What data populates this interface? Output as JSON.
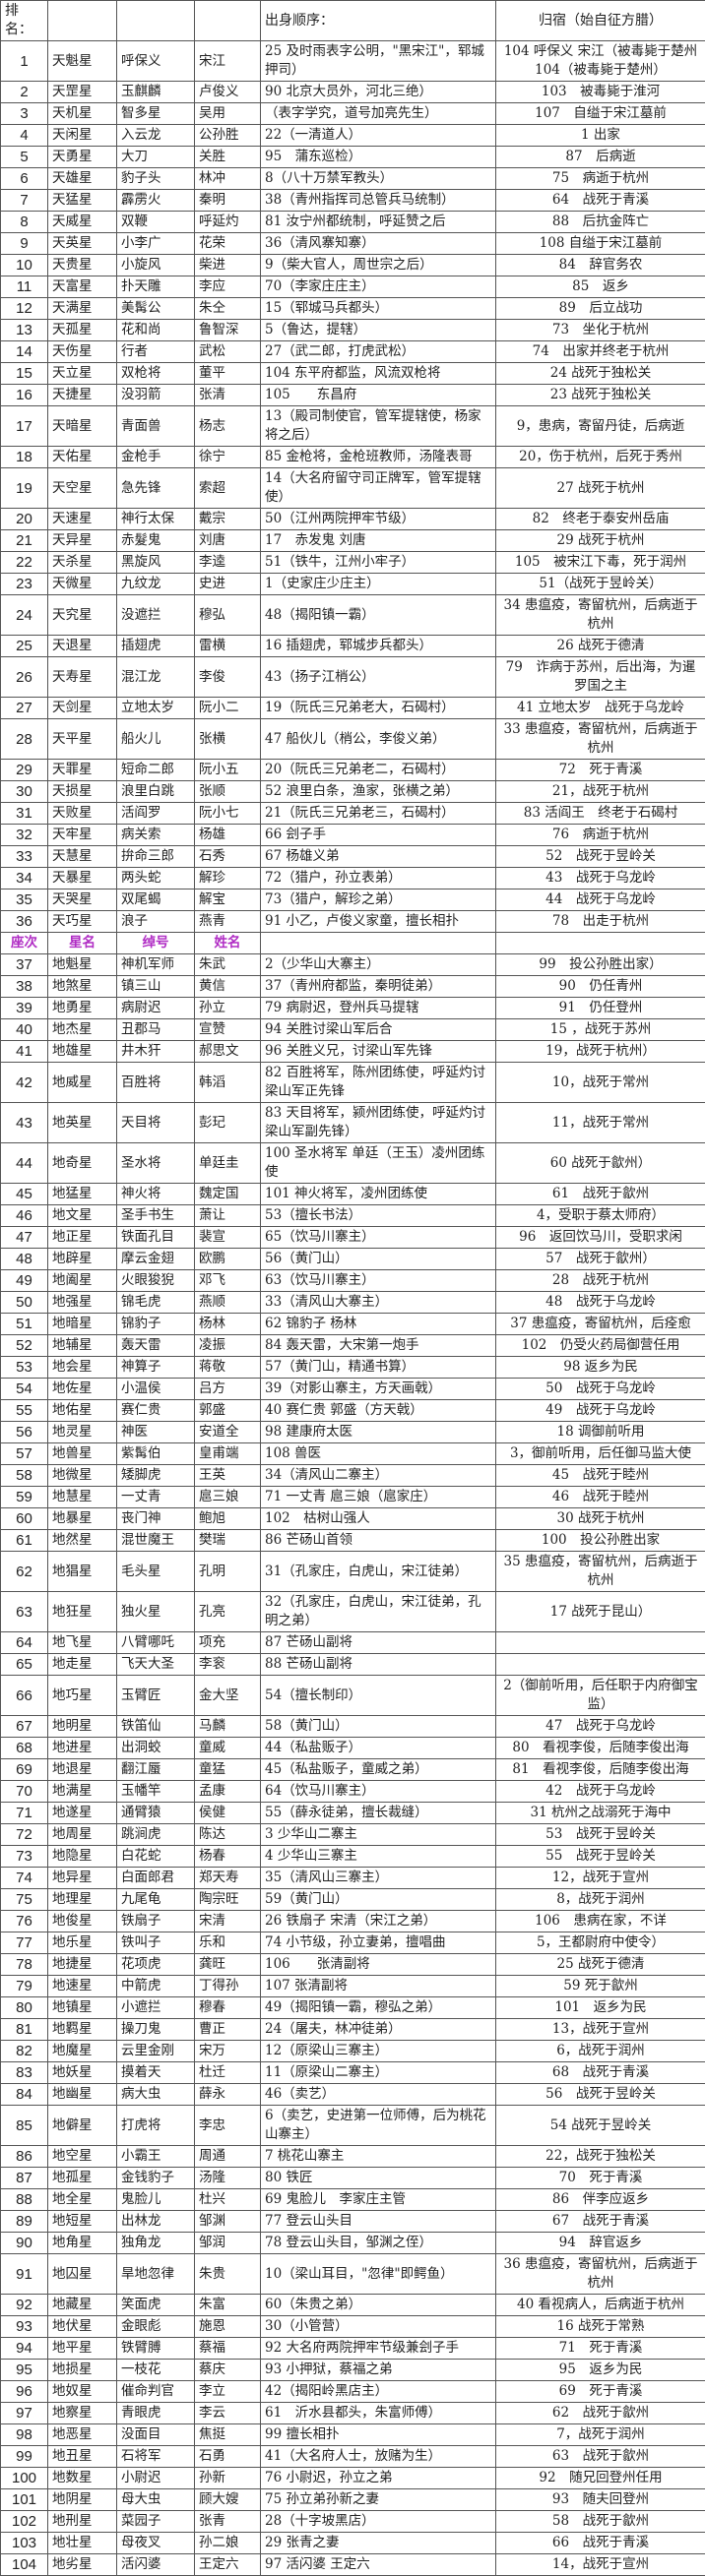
{
  "header": {
    "rank": "排名：",
    "origin": "出身顺序：",
    "fate": "归宿（始自征方腊）"
  },
  "subheader": {
    "rank": "座次",
    "star": "星名",
    "nickname": "绰号",
    "name": "姓名",
    "color": "#b02cc4"
  },
  "rows_tiangang": [
    [
      "1",
      "天魁星",
      "呼保义",
      "宋江",
      "25 及时雨表字公明，\"黑宋江\"，郓城押司）",
      "104 呼保义 宋江（被毒毙于楚州 104（被毒毙于楚州）"
    ],
    [
      "2",
      "天罡星",
      "玉麒麟",
      "卢俊义",
      "90 北京大员外，河北三绝）",
      "103　被毒毙于淮河"
    ],
    [
      "3",
      "天机星",
      "智多星",
      "吴用",
      "（表字学究，道号加亮先生）",
      "107　自缢于宋江墓前"
    ],
    [
      "4",
      "天闲星",
      "入云龙",
      "公孙胜",
      "22（一清道人）",
      "1 出家"
    ],
    [
      "5",
      "天勇星",
      "大刀",
      "关胜",
      "95　蒲东巡检）",
      "87　后病逝"
    ],
    [
      "6",
      "天雄星",
      "豹子头",
      "林冲",
      "8（八十万禁军教头）",
      "75　病逝于杭州"
    ],
    [
      "7",
      "天猛星",
      "霹雳火",
      "秦明",
      "38（青州指挥司总管兵马统制）",
      "64　战死于青溪"
    ],
    [
      "8",
      "天威星",
      "双鞭",
      "呼延灼",
      "81 汝宁州都统制，呼延赞之后",
      "88　后抗金阵亡"
    ],
    [
      "9",
      "天英星",
      "小李广",
      "花荣",
      "36（清风寨知寨）",
      "108 自缢于宋江墓前"
    ],
    [
      "10",
      "天贵星",
      "小旋风",
      "柴进",
      "9（柴大官人，周世宗之后）",
      "84　辞官务农"
    ],
    [
      "11",
      "天富星",
      "扑天雕",
      "李应",
      "70（李家庄庄主）",
      "85　返乡"
    ],
    [
      "12",
      "天满星",
      "美髯公",
      "朱仝",
      "15（郓城马兵都头）",
      "89　后立战功"
    ],
    [
      "13",
      "天孤星",
      "花和尚",
      "鲁智深",
      "5（鲁达，提辖）",
      "73　坐化于杭州"
    ],
    [
      "14",
      "天伤星",
      "行者",
      "武松",
      "27（武二郎，打虎武松）",
      "74　出家并终老于杭州"
    ],
    [
      "15",
      "天立星",
      "双枪将",
      "董平",
      "104 东平府都监，风流双枪将",
      "24 战死于独松关"
    ],
    [
      "16",
      "天捷星",
      "没羽箭",
      "张清",
      "105　　东昌府",
      "23 战死于独松关"
    ],
    [
      "17",
      "天暗星",
      "青面兽",
      "杨志",
      "13（殿司制使官，管军提辖使，杨家将之后）",
      "9，患病，寄留丹徒，后病逝"
    ],
    [
      "18",
      "天佑星",
      "金枪手",
      "徐宁",
      "85 金枪将，金枪班教师，汤隆表哥",
      "20，伤于杭州，后死于秀州"
    ],
    [
      "19",
      "天空星",
      "急先锋",
      "索超",
      "14（大名府留守司正牌军，管军提辖使）",
      "27 战死于杭州"
    ],
    [
      "20",
      "天速星",
      "神行太保",
      "戴宗",
      "50（江州两院押牢节级）",
      "82　终老于泰安州岳庙"
    ],
    [
      "21",
      "天异星",
      "赤髮鬼",
      "刘唐",
      "17　赤发鬼 刘唐",
      "29 战死于杭州"
    ],
    [
      "22",
      "天杀星",
      "黑旋风",
      "李逵",
      "51（铁牛，江州小牢子）",
      "105　被宋江下毒，死于润州"
    ],
    [
      "23",
      "天微星",
      "九纹龙",
      "史进",
      "1（史家庄少庄主）",
      "51（战死于昱岭关）"
    ],
    [
      "24",
      "天究星",
      "没遮拦",
      "穆弘",
      "48（揭阳镇一霸）",
      "34 患瘟疫，寄留杭州，后病逝于杭州"
    ],
    [
      "25",
      "天退星",
      "插翅虎",
      "雷横",
      "16 插翅虎，郓城步兵都头）",
      "26 战死于德清"
    ],
    [
      "26",
      "天寿星",
      "混江龙",
      "李俊",
      "43（扬子江梢公）",
      "79　诈病于苏州，后出海，为暹罗国之主"
    ],
    [
      "27",
      "天剑星",
      "立地太岁",
      "阮小二",
      "19（阮氏三兄弟老大，石碣村）",
      "41 立地太岁　战死于乌龙岭"
    ],
    [
      "28",
      "天平星",
      "船火儿",
      "张横",
      "47 船伙儿（梢公，李俊义弟）",
      "33 患瘟疫，寄留杭州，后病逝于杭州"
    ],
    [
      "29",
      "天罪星",
      "短命二郎",
      "阮小五",
      "20（阮氏三兄弟老二，石碣村）",
      "72　死于青溪"
    ],
    [
      "30",
      "天损星",
      "浪里白跳",
      "张顺",
      "52 浪里白条，渔家，张横之弟）",
      "21，战死于杭州"
    ],
    [
      "31",
      "天败星",
      "活阎罗",
      "阮小七",
      "21（阮氏三兄弟老三，石碣村）",
      "83 活阎王　终老于石碣村"
    ],
    [
      "32",
      "天牢星",
      "病关索",
      "杨雄",
      "66 刽子手",
      "76　病逝于杭州"
    ],
    [
      "33",
      "天慧星",
      "拚命三郎",
      "石秀",
      "67 杨雄义弟",
      "52　战死于昱岭关"
    ],
    [
      "34",
      "天暴星",
      "两头蛇",
      "解珍",
      "72（猎户，孙立表弟）",
      "43　战死于乌龙岭"
    ],
    [
      "35",
      "天哭星",
      "双尾蝎",
      "解宝",
      "73（猎户，解珍之弟）",
      "44　战死于乌龙岭"
    ],
    [
      "36",
      "天巧星",
      "浪子",
      "燕青",
      "91 小乙，卢俊义家童，擅长相扑",
      "78　出走于杭州"
    ]
  ],
  "rows_disha": [
    [
      "37",
      "地魁星",
      "神机军师",
      "朱武",
      "2（少华山大寨主）",
      "99　投公孙胜出家）"
    ],
    [
      "38",
      "地煞星",
      "镇三山",
      "黄信",
      "37（青州府都监，秦明徒弟）",
      "90　仍任青州"
    ],
    [
      "39",
      "地勇星",
      "病尉迟",
      "孙立",
      "79 病尉迟，登州兵马提辖",
      "91　仍任登州"
    ],
    [
      "40",
      "地杰星",
      "丑郡马",
      "宣赞",
      "94 关胜讨梁山军后合",
      "15 ，战死于苏州"
    ],
    [
      "41",
      "地雄星",
      "井木犴",
      "郝思文",
      "96 关胜义兄，讨梁山军先锋",
      "19，战死于杭州）"
    ],
    [
      "42",
      "地威星",
      "百胜将",
      "韩滔",
      "82 百胜将军，陈州团练使，呼延灼讨梁山军正先锋",
      "10，战死于常州"
    ],
    [
      "43",
      "地英星",
      "天目将",
      "彭玘",
      "83 天目将军，颍州团练使，呼延灼讨梁山军副先锋）",
      "11，战死于常州"
    ],
    [
      "44",
      "地奇星",
      "圣水将",
      "单廷圭",
      "100 圣水将军 单廷（王玉）凌州团练使",
      "60 战死于歙州）"
    ],
    [
      "45",
      "地猛星",
      "神火将",
      "魏定国",
      "101 神火将军，凌州团练使",
      "61　战死于歙州"
    ],
    [
      "46",
      "地文星",
      "圣手书生",
      "萧让",
      "53（擅长书法）",
      "4，受职于蔡太师府）"
    ],
    [
      "47",
      "地正星",
      "铁面孔目",
      "裴宣",
      "65（饮马川寨主）",
      "96　返回饮马川，受职求闲"
    ],
    [
      "48",
      "地辟星",
      "摩云金翅",
      "欧鹏",
      "56（黄门山）",
      "57　战死于歙州）"
    ],
    [
      "49",
      "地阖星",
      "火眼狻猊",
      "邓飞",
      "63（饮马川寨主）",
      "28　战死于杭州"
    ],
    [
      "50",
      "地强星",
      "锦毛虎",
      "燕顺",
      "33（清风山大寨主）",
      "48　战死于乌龙岭"
    ],
    [
      "51",
      "地暗星",
      "锦豹子",
      "杨林",
      "62 锦豹子 杨林",
      "37 患瘟疫，寄留杭州，后痊愈"
    ],
    [
      "52",
      "地辅星",
      "轰天雷",
      "凌振",
      "84 轰天雷，大宋第一炮手",
      "102　仍受火药局御营任用"
    ],
    [
      "53",
      "地会星",
      "神算子",
      "蒋敬",
      "57（黄门山，精通书算）",
      "98 返乡为民"
    ],
    [
      "54",
      "地佐星",
      "小温侯",
      "吕方",
      "39（对影山寨主，方天画戟）",
      "50　战死于乌龙岭"
    ],
    [
      "55",
      "地佑星",
      "赛仁贵",
      "郭盛",
      "40 赛仁贵 郭盛（方天戟）",
      "49　战死于乌龙岭"
    ],
    [
      "56",
      "地灵星",
      "神医",
      "安道全",
      "98 建康府太医",
      "18 调御前听用"
    ],
    [
      "57",
      "地兽星",
      "紫髯伯",
      "皇甫端",
      "108 兽医",
      "3，御前听用，后任御马监大使"
    ],
    [
      "58",
      "地微星",
      "矮脚虎",
      "王英",
      "34（清风山二寨主）",
      "45　战死于睦州"
    ],
    [
      "59",
      "地慧星",
      "一丈青",
      "扈三娘",
      "71 一丈青 扈三娘（扈家庄）",
      "46　战死于睦州"
    ],
    [
      "60",
      "地暴星",
      "丧门神",
      "鲍旭",
      "102　枯树山强人",
      "30 战死于杭州"
    ],
    [
      "61",
      "地然星",
      "混世魔王",
      "樊瑞",
      "86 芒砀山首领",
      "100　投公孙胜出家"
    ],
    [
      "62",
      "地猖星",
      "毛头星",
      "孔明",
      "31（孔家庄，白虎山，宋江徒弟）",
      "35 患瘟疫，寄留杭州，后病逝于杭州"
    ],
    [
      "63",
      "地狂星",
      "独火星",
      "孔亮",
      "32（孔家庄，白虎山，宋江徒弟，孔明之弟）",
      "17 战死于昆山）"
    ],
    [
      "64",
      "地飞星",
      "八臂哪吒",
      "项充",
      "87 芒砀山副将",
      ""
    ],
    [
      "65",
      "地走星",
      "飞天大圣",
      "李衮",
      "88 芒砀山副将",
      ""
    ],
    [
      "66",
      "地巧星",
      "玉臂匠",
      "金大坚",
      "54（擅长制印）",
      "2（御前听用，后任职于内府御宝监）"
    ],
    [
      "67",
      "地明星",
      "铁笛仙",
      "马麟",
      "58（黄门山）",
      "47　战死于乌龙岭"
    ],
    [
      "68",
      "地进星",
      "出洞蛟",
      "童威",
      "44（私盐贩子）",
      "80　看视李俊，后随李俊出海"
    ],
    [
      "69",
      "地退星",
      "翻江蜃",
      "童猛",
      "45（私盐贩子，童威之弟）",
      "81　看视李俊，后随李俊出海"
    ],
    [
      "70",
      "地满星",
      "玉幡竿",
      "孟康",
      "64（饮马川寨主）",
      "42　战死于乌龙岭"
    ],
    [
      "71",
      "地遂星",
      "通臂猿",
      "侯健",
      "55（薛永徒弟，擅长裁缝）",
      "31 杭州之战溺死于海中"
    ],
    [
      "72",
      "地周星",
      "跳涧虎",
      "陈达",
      "3 少华山二寨主",
      "53　战死于昱岭关"
    ],
    [
      "73",
      "地隐星",
      "白花蛇",
      "杨春",
      "4 少华山三寨主",
      "55　战死于昱岭关"
    ],
    [
      "74",
      "地异星",
      "白面郎君",
      "郑天寿",
      "35（清风山三寨主）",
      "12，战死于宣州"
    ],
    [
      "75",
      "地理星",
      "九尾龟",
      "陶宗旺",
      "59（黄门山）",
      "8，战死于润州"
    ],
    [
      "76",
      "地俊星",
      "铁扇子",
      "宋清",
      "26 铁扇子 宋清（宋江之弟）",
      "106　患病在家，不详"
    ],
    [
      "77",
      "地乐星",
      "铁叫子",
      "乐和",
      "74 小节级，孙立妻弟，擅唱曲",
      "5，王都尉府中使令）"
    ],
    [
      "78",
      "地捷星",
      "花项虎",
      "龚旺",
      "106　　张清副将",
      "25 战死于德清"
    ],
    [
      "79",
      "地速星",
      "中箭虎",
      "丁得孙",
      "107 张清副将",
      "59 死于歙州"
    ],
    [
      "80",
      "地镇星",
      "小遮拦",
      "穆春",
      "49（揭阳镇一霸，穆弘之弟）",
      "101　返乡为民"
    ],
    [
      "81",
      "地羁星",
      "操刀鬼",
      "曹正",
      "24（屠夫，林冲徒弟）",
      "13，战死于宣州"
    ],
    [
      "82",
      "地魔星",
      "云里金刚",
      "宋万",
      "12（原梁山三寨主）",
      "6，战死于润州"
    ],
    [
      "83",
      "地妖星",
      "摸着天",
      "杜迁",
      "11（原梁山二寨主）",
      "68　战死于青溪"
    ],
    [
      "84",
      "地幽星",
      "病大虫",
      "薛永",
      "46（卖艺）",
      "56　战死于昱岭关"
    ],
    [
      "85",
      "地僻星",
      "打虎将",
      "李忠",
      "6（卖艺，史进第一位师傅，后为桃花山寨主）",
      "54 战死于昱岭关"
    ],
    [
      "86",
      "地空星",
      "小霸王",
      "周通",
      "7 桃花山寨主",
      "22，战死于独松关"
    ],
    [
      "87",
      "地孤星",
      "金钱豹子",
      "汤隆",
      "80 铁匠",
      "70　死于青溪"
    ],
    [
      "88",
      "地全星",
      "鬼脸儿",
      "杜兴",
      "69 鬼脸儿　李家庄主管",
      "86　伴李应返乡"
    ],
    [
      "89",
      "地短星",
      "出林龙",
      "邹渊",
      "77 登云山头目",
      "67　战死于青溪"
    ],
    [
      "90",
      "地角星",
      "独角龙",
      "邹润",
      "78 登云山头目，邹渊之侄）",
      "94　辞官返乡"
    ],
    [
      "91",
      "地囚星",
      "旱地忽律",
      "朱贵",
      "10（梁山耳目，\"忽律\"即鳄鱼）",
      "36 患瘟疫，寄留杭州，后病逝于杭州"
    ],
    [
      "92",
      "地藏星",
      "笑面虎",
      "朱富",
      "60（朱贵之弟）",
      "40 看视病人，后病逝于杭州"
    ],
    [
      "93",
      "地伏星",
      "金眼彪",
      "施恩",
      "30（小管营）",
      "16 战死于常熟"
    ],
    [
      "94",
      "地平星",
      "铁臂膊",
      "蔡福",
      "92 大名府两院押牢节级兼刽子手",
      "71　死于青溪"
    ],
    [
      "95",
      "地损星",
      "一枝花",
      "蔡庆",
      "93 小押狱，蔡福之弟",
      "95　返乡为民"
    ],
    [
      "96",
      "地奴星",
      "催命判官",
      "李立",
      "42（揭阳岭黑店主）",
      "69　死于青溪"
    ],
    [
      "97",
      "地察星",
      "青眼虎",
      "李云",
      "61　沂水县都头，朱富师傅）",
      "62　战死于歙州"
    ],
    [
      "98",
      "地恶星",
      "没面目",
      "焦挺",
      "99 擅长相扑",
      "7，战死于润州"
    ],
    [
      "99",
      "地丑星",
      "石将军",
      "石勇",
      "41（大名府人士，放赌为生）",
      "63　战死于歙州"
    ],
    [
      "100",
      "地数星",
      "小尉迟",
      "孙新",
      "76 小尉迟，孙立之弟",
      "92　随兄回登州任用"
    ],
    [
      "101",
      "地阴星",
      "母大虫",
      "顾大嫂",
      "75 孙立弟孙新之妻",
      "93　随夫回登州"
    ],
    [
      "102",
      "地刑星",
      "菜园子",
      "张青",
      "28（十字坡黑店）",
      "58　战死于歙州"
    ],
    [
      "103",
      "地壮星",
      "母夜叉",
      "孙二娘",
      "29 张青之妻",
      "66　战死于青溪"
    ],
    [
      "104",
      "地劣星",
      "活闪婆",
      "王定六",
      "97 活闪婆 王定六",
      "14，战死于宣州"
    ]
  ]
}
